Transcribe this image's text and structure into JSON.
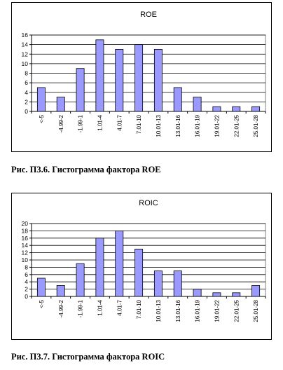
{
  "chart_data": [
    {
      "type": "bar",
      "title": "ROE",
      "categories": [
        "<-5",
        "-4.99-2",
        "-1.99-1",
        "1.01-4",
        "4.01-7",
        "7.01-10",
        "10.01-13",
        "13.01-16",
        "16.01-19",
        "19.01-22",
        "22.01-25",
        "25.01-28"
      ],
      "values": [
        5,
        3,
        9,
        15,
        13,
        14,
        13,
        5,
        3,
        1,
        1,
        1
      ],
      "ylim": [
        0,
        16
      ],
      "yticks": [
        0,
        2,
        4,
        6,
        8,
        10,
        12,
        14,
        16
      ],
      "grid": true,
      "bar_color": "#9999ff"
    },
    {
      "type": "bar",
      "title": "ROIC",
      "categories": [
        "<-5",
        "-4.99-2",
        "-1.99-1",
        "1.01-4",
        "4.01-7",
        "7.01-10",
        "10.01-13",
        "13.01-16",
        "16.01-19",
        "19.01-22",
        "22.01-25",
        "25.01-28"
      ],
      "values": [
        5,
        3,
        9,
        16,
        18,
        13,
        7,
        7,
        2,
        1,
        1,
        3
      ],
      "ylim": [
        0,
        20
      ],
      "yticks": [
        0,
        2,
        4,
        6,
        8,
        10,
        12,
        14,
        16,
        18,
        20
      ],
      "grid": true,
      "bar_color": "#9999ff"
    }
  ],
  "captions": [
    "Рис. П3.6. Гистограмма фактора ROE",
    "Рис. П3.7. Гистограмма фактора ROIC"
  ]
}
